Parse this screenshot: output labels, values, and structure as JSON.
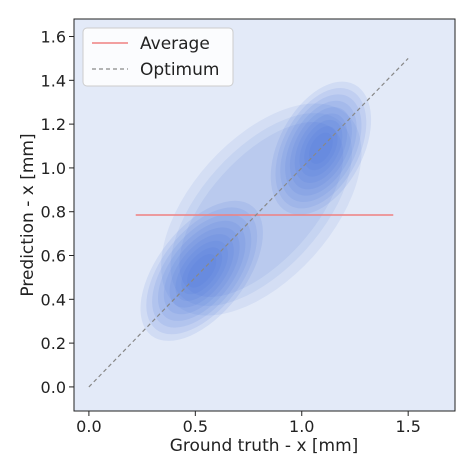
{
  "chart_data": {
    "type": "kde-contour",
    "xlabel": "Ground truth - x [mm]",
    "ylabel": "Prediction - x [mm]",
    "xlim": [
      -0.07,
      1.72
    ],
    "ylim": [
      -0.11,
      1.68
    ],
    "x_ticks": [
      0.0,
      0.5,
      1.0,
      1.5
    ],
    "y_ticks": [
      0.0,
      0.2,
      0.4,
      0.6,
      0.8,
      1.0,
      1.2,
      1.4,
      1.6
    ],
    "grid": false,
    "legend_position": "top-left",
    "background_color": "#e3eaf8",
    "contour_color": "#3f6fd8",
    "series": [
      {
        "name": "Average",
        "kind": "line",
        "color": "#f08080",
        "x": [
          0.22,
          1.43
        ],
        "y": [
          0.785,
          0.785
        ]
      },
      {
        "name": "Optimum",
        "kind": "dashed-line",
        "color": "#888888",
        "x": [
          0.0,
          1.5
        ],
        "y": [
          0.0,
          1.5
        ]
      }
    ],
    "density_peaks": [
      {
        "x": 0.53,
        "y": 0.53
      },
      {
        "x": 1.09,
        "y": 1.09
      }
    ]
  }
}
